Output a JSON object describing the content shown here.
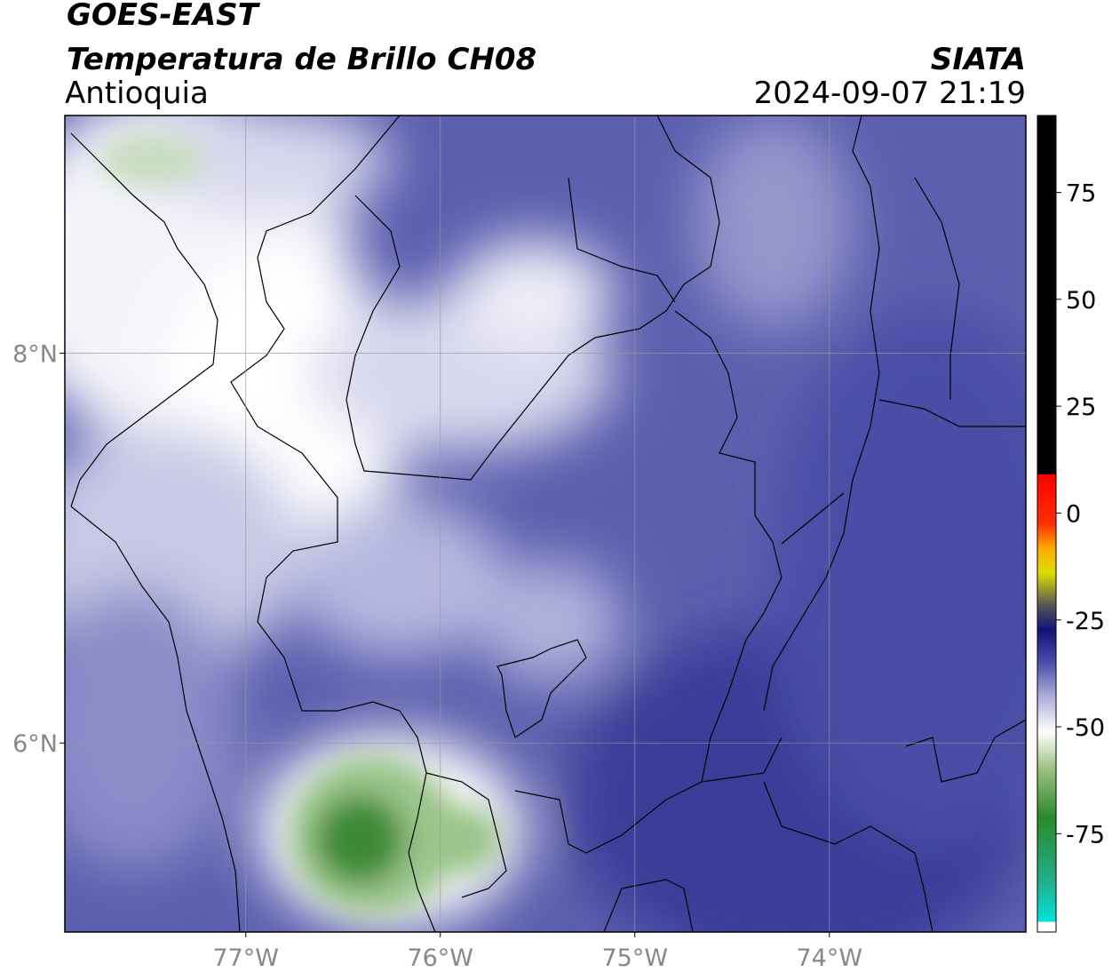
{
  "title": "GOES-EAST",
  "subtitle": "Temperatura de Brillo CH08",
  "region": "Antioquia",
  "source": "SIATA",
  "timestamp": "2024-09-07 21:19",
  "map": {
    "xlim": [
      -77.93,
      -72.99
    ],
    "ylim": [
      5.03,
      9.22
    ],
    "xticks": [
      {
        "value": -77,
        "label": "77°W"
      },
      {
        "value": -76,
        "label": "76°W"
      },
      {
        "value": -75,
        "label": "75°W"
      },
      {
        "value": -74,
        "label": "74°W"
      }
    ],
    "yticks": [
      {
        "value": 6,
        "label": "6°N"
      },
      {
        "value": 8,
        "label": "8°N"
      }
    ],
    "grid": true
  },
  "colorbar": {
    "clim": [
      -98,
      93
    ],
    "ticks": [
      -75,
      -50,
      -25,
      0,
      25,
      50,
      75
    ]
  }
}
